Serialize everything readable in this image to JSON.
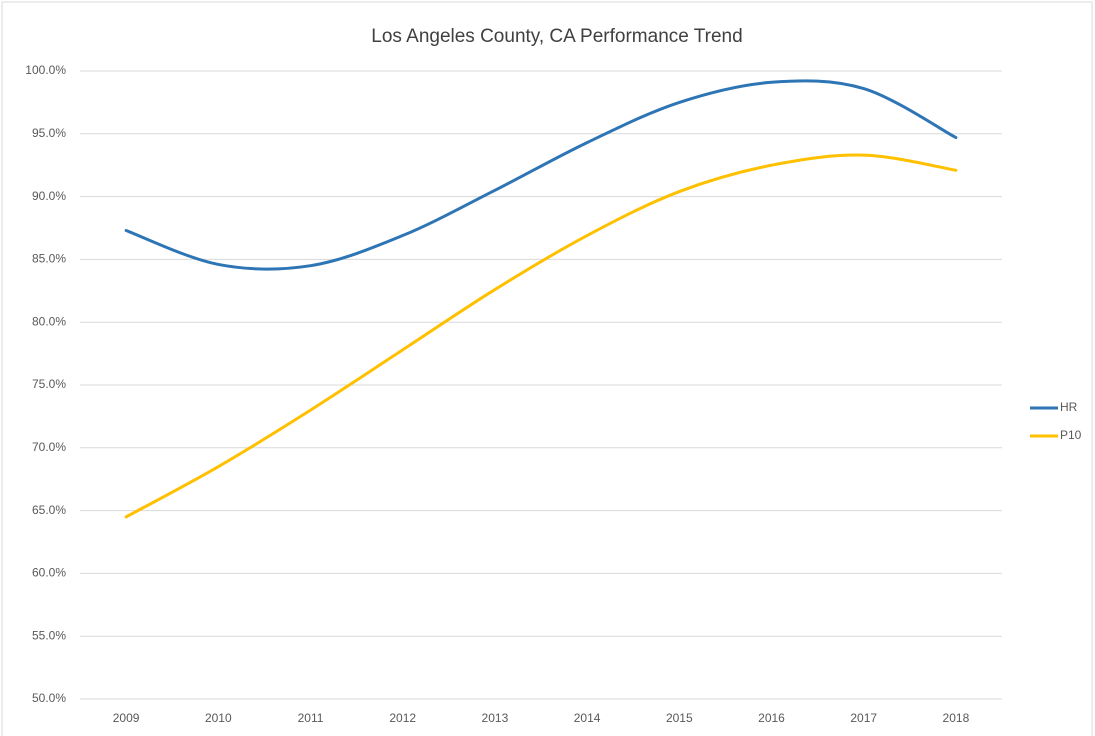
{
  "chart_data": {
    "type": "line",
    "title": "Los Angeles County, CA Performance Trend",
    "categories": [
      "2009",
      "2010",
      "2011",
      "2012",
      "2013",
      "2014",
      "2015",
      "2016",
      "2017",
      "2018"
    ],
    "series": [
      {
        "name": "HR",
        "color": "#2e75b6",
        "values": [
          87.3,
          84.6,
          84.5,
          86.9,
          90.5,
          94.3,
          97.5,
          99.1,
          98.6,
          94.7
        ]
      },
      {
        "name": "P10",
        "color": "#ffc000",
        "values": [
          64.5,
          68.5,
          73.0,
          77.8,
          82.6,
          86.9,
          90.4,
          92.5,
          93.3,
          92.1
        ]
      }
    ],
    "ylim": [
      50,
      100
    ],
    "yticks": [
      {
        "value": 50,
        "label": "50.0%"
      },
      {
        "value": 55,
        "label": "55.0%"
      },
      {
        "value": 60,
        "label": "60.0%"
      },
      {
        "value": 65,
        "label": "65.0%"
      },
      {
        "value": 70,
        "label": "70.0%"
      },
      {
        "value": 75,
        "label": "75.0%"
      },
      {
        "value": 80,
        "label": "80.0%"
      },
      {
        "value": 85,
        "label": "85.0%"
      },
      {
        "value": 90,
        "label": "90.0%"
      },
      {
        "value": 95,
        "label": "95.0%"
      },
      {
        "value": 100,
        "label": "100.0%"
      }
    ],
    "grid": true,
    "smooth": true,
    "legend": "right"
  }
}
